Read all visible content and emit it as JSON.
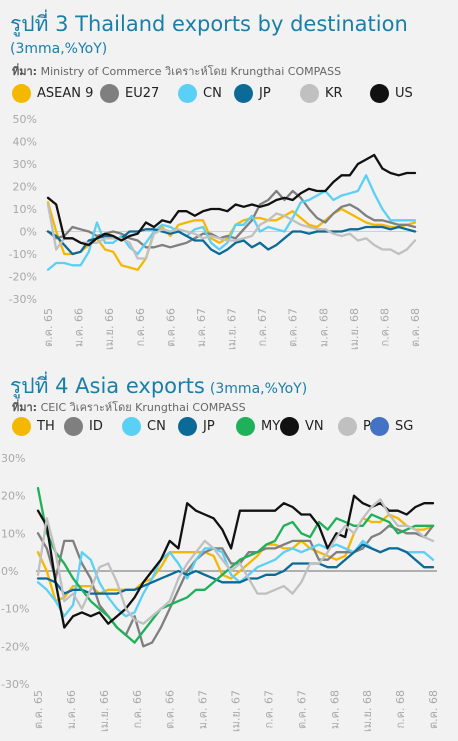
{
  "charts": [
    {
      "title_main": "รูปที่ 3 Thailand exports by destination",
      "title_sub": "(3mma,%YoY)",
      "source_label": "ที่มา:",
      "source_text": "Ministry of Commerce วิเคราะห์โดย Krungthai COMPASS"
    },
    {
      "title_main": "รูปที่ 4 Asia exports",
      "title_sub": "(3mma,%YoY)",
      "source_label": "ที่มา:",
      "source_text": "CEIC วิเคราะห์โดย Krungthai COMPASS"
    }
  ],
  "chart_data": [
    {
      "type": "line",
      "title": "รูปที่ 3 Thailand exports by destination (3mma,%YoY)",
      "ylim": [
        -30,
        50
      ],
      "yticks": [
        -30,
        -20,
        -10,
        0,
        10,
        20,
        30,
        40,
        50
      ],
      "ytick_labels": [
        "-30%",
        "-20%",
        "-10%",
        "0%",
        "10%",
        "20%",
        "30%",
        "40%",
        "50%"
      ],
      "x_count": 46,
      "xtick_labels": [
        "ต.ค. 65",
        "ม.ค. 66",
        "เม.ย. 66",
        "ก.ค. 66",
        "ต.ค. 66",
        "ม.ค. 67",
        "เม.ย. 67",
        "ก.ค. 67",
        "ต.ค. 67",
        "ม.ค. 68",
        "เม.ย. 68",
        "ก.ค. 68",
        "ต.ค. 68"
      ],
      "grid": false,
      "legend_position": "top",
      "series": [
        {
          "name": "ASEAN 9",
          "color": "#f5b800",
          "values": [
            13,
            0,
            -10,
            -10,
            -9,
            -6,
            -3,
            -8,
            -9,
            -15,
            -16,
            -17,
            -12,
            0,
            2,
            -2,
            3,
            4,
            5,
            5,
            -3,
            -5,
            -3,
            3,
            5,
            6,
            6,
            5,
            5,
            7,
            9,
            6,
            3,
            2,
            5,
            8,
            10,
            8,
            6,
            4,
            3,
            3,
            2,
            2,
            3,
            4
          ]
        },
        {
          "name": "EU27",
          "color": "#7f7f7f",
          "values": [
            0,
            -3,
            -2,
            2,
            1,
            0,
            -2,
            -1,
            0,
            -1,
            -3,
            -4,
            -7,
            -7,
            -6,
            -7,
            -6,
            -5,
            -3,
            -1,
            -1,
            -3,
            -2,
            -3,
            1,
            5,
            12,
            14,
            18,
            14,
            18,
            15,
            10,
            6,
            4,
            8,
            11,
            12,
            10,
            7,
            5,
            5,
            4,
            3,
            3,
            2
          ]
        },
        {
          "name": "CN",
          "color": "#5bd0f5",
          "values": [
            -17,
            -14,
            -14,
            -15,
            -15,
            -9,
            4,
            -5,
            -5,
            -2,
            -7,
            -10,
            -5,
            0,
            3,
            2,
            0,
            -2,
            1,
            2,
            -5,
            -8,
            -5,
            3,
            3,
            7,
            0,
            2,
            1,
            0,
            6,
            13,
            14,
            16,
            18,
            14,
            16,
            17,
            18,
            25,
            17,
            10,
            5,
            5,
            5,
            5
          ]
        },
        {
          "name": "JP",
          "color": "#0b6a96",
          "values": [
            0,
            -2,
            -6,
            -10,
            -9,
            -4,
            -3,
            -2,
            -3,
            -3,
            0,
            0,
            1,
            1,
            0,
            -1,
            0,
            -2,
            -4,
            -4,
            -8,
            -10,
            -8,
            -5,
            -4,
            -7,
            -5,
            -8,
            -6,
            -3,
            0,
            0,
            -1,
            0,
            0,
            0,
            0,
            1,
            1,
            2,
            2,
            2,
            1,
            2,
            1,
            0
          ]
        },
        {
          "name": "KR",
          "color": "#c0c0c0",
          "values": [
            12,
            -8,
            -3,
            -3,
            -5,
            -5,
            -5,
            -3,
            -3,
            -3,
            -5,
            -12,
            -12,
            -1,
            1,
            0,
            1,
            0,
            -1,
            -3,
            -2,
            -3,
            -4,
            -4,
            -3,
            -2,
            3,
            5,
            8,
            7,
            5,
            3,
            2,
            1,
            1,
            -1,
            -2,
            -1,
            -4,
            -3,
            -6,
            -8,
            -8,
            -10,
            -8,
            -4
          ]
        },
        {
          "name": "US",
          "color": "#111111",
          "values": [
            15,
            12,
            -3,
            -3,
            -5,
            -6,
            -3,
            -1,
            -2,
            -4,
            -2,
            -1,
            4,
            2,
            5,
            4,
            9,
            9,
            7,
            9,
            10,
            10,
            9,
            12,
            11,
            12,
            11,
            12,
            14,
            15,
            14,
            17,
            19,
            18,
            18,
            22,
            25,
            25,
            30,
            32,
            34,
            28,
            26,
            25,
            26,
            26
          ]
        }
      ]
    },
    {
      "type": "line",
      "title": "รูปที่ 4 Asia exports (3mma,%YoY)",
      "ylim": [
        -30,
        30
      ],
      "yticks": [
        -30,
        -20,
        -10,
        0,
        10,
        20,
        30
      ],
      "ytick_labels": [
        "-30%",
        "-20%",
        "-10%",
        "0%",
        "10%",
        "20%",
        "30%"
      ],
      "x_count": 46,
      "xtick_labels": [
        "ต.ค. 65",
        "ม.ค. 66",
        "เม.ย. 66",
        "ก.ค. 66",
        "ต.ค. 66",
        "ม.ค. 67",
        "เม.ย. 67",
        "ก.ค. 67",
        "ต.ค. 67",
        "ม.ค. 68",
        "เม.ย. 68",
        "ก.ค. 68",
        "ต.ค. 68"
      ],
      "grid": false,
      "legend_position": "top",
      "series": [
        {
          "name": "TH",
          "color": "#f5b800",
          "values": [
            5,
            0,
            -8,
            -7,
            -4,
            -4,
            -4,
            -6,
            -5,
            -5,
            -5,
            -5,
            -3,
            -2,
            1,
            5,
            5,
            5,
            5,
            5,
            4,
            -1,
            -2,
            0,
            2,
            4,
            7,
            7,
            6,
            6,
            8,
            6,
            5,
            4,
            3,
            4,
            10,
            14,
            13,
            13,
            15,
            14,
            12,
            11,
            11,
            12
          ]
        },
        {
          "name": "ID",
          "color": "#7f7f7f",
          "values": [
            10,
            6,
            -2,
            8,
            8,
            2,
            -2,
            -9,
            -12,
            -15,
            -17,
            -12,
            -20,
            -19,
            -15,
            -10,
            -5,
            0,
            3,
            5,
            6,
            6,
            2,
            2,
            5,
            5,
            6,
            6,
            7,
            8,
            8,
            8,
            3,
            3,
            5,
            5,
            5,
            6,
            9,
            10,
            12,
            11,
            10,
            10,
            9,
            12
          ]
        },
        {
          "name": "CN",
          "color": "#5bd0f5",
          "values": [
            -3,
            -5,
            -8,
            -12,
            -9,
            5,
            3,
            -3,
            -7,
            -10,
            -12,
            -11,
            -6,
            -2,
            3,
            5,
            2,
            -2,
            3,
            6,
            6,
            5,
            -1,
            -3,
            -1,
            1,
            2,
            3,
            5,
            6,
            5,
            6,
            7,
            6,
            7,
            6,
            5,
            8,
            6,
            5,
            6,
            6,
            5,
            5,
            5,
            3
          ]
        },
        {
          "name": "JP",
          "color": "#0b6a96",
          "values": [
            -2,
            -2,
            -3,
            -6,
            -5,
            -5,
            -6,
            -6,
            -6,
            -6,
            -5,
            -5,
            -4,
            -3,
            -2,
            -1,
            0,
            -1,
            0,
            -1,
            -2,
            -3,
            -3,
            -3,
            -2,
            -2,
            -1,
            -1,
            0,
            2,
            2,
            2,
            2,
            1,
            1,
            3,
            5,
            7,
            6,
            5,
            6,
            6,
            5,
            3,
            1,
            1
          ]
        },
        {
          "name": "MY",
          "color": "#1fb05a",
          "values": [
            22,
            10,
            5,
            2,
            -2,
            -5,
            -8,
            -10,
            -12,
            -15,
            -17,
            -19,
            -16,
            -13,
            -10,
            -9,
            -8,
            -7,
            -5,
            -5,
            -3,
            -1,
            1,
            3,
            4,
            5,
            7,
            8,
            12,
            13,
            10,
            9,
            13,
            11,
            14,
            13,
            12,
            12,
            15,
            14,
            13,
            10,
            11,
            12,
            12,
            12
          ]
        },
        {
          "name": "VN",
          "color": "#111111",
          "values": [
            16,
            12,
            -3,
            -15,
            -12,
            -11,
            -12,
            -11,
            -14,
            -12,
            -10,
            -7,
            -3,
            0,
            3,
            8,
            6,
            18,
            16,
            15,
            14,
            11,
            6,
            16,
            16,
            16,
            16,
            16,
            18,
            17,
            15,
            15,
            12,
            6,
            10,
            9,
            20,
            18,
            17,
            18,
            16,
            16,
            15,
            17,
            18,
            18
          ]
        },
        {
          "name": "PH",
          "color": "#c0c0c0",
          "values": [
            -1,
            14,
            5,
            -8,
            -6,
            -10,
            -5,
            1,
            2,
            -3,
            -10,
            -13,
            -14,
            -12,
            -10,
            -8,
            -2,
            2,
            5,
            8,
            6,
            3,
            0,
            2,
            -2,
            -6,
            -6,
            -5,
            -4,
            -6,
            -3,
            2,
            2,
            5,
            9,
            12,
            10,
            14,
            17,
            19,
            15,
            12,
            12,
            11,
            9,
            8
          ]
        },
        {
          "name": "SG",
          "color": "#4472c4",
          "values": []
        }
      ]
    }
  ]
}
